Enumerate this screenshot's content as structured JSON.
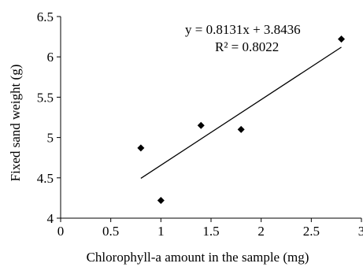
{
  "chart_data": {
    "type": "scatter",
    "title": "",
    "xlabel": "Chlorophyll-a amount in the sample (mg)",
    "ylabel": "Fixed sand weight (g)",
    "xlim": [
      0,
      3
    ],
    "ylim": [
      4,
      6.5
    ],
    "x_ticks": [
      "0",
      "0.5",
      "1",
      "1.5",
      "2",
      "2.5",
      "3"
    ],
    "y_ticks": [
      "4",
      "4.5",
      "5",
      "5.5",
      "6",
      "6.5"
    ],
    "grid": false,
    "series": [
      {
        "marker": "diamond",
        "color": "#000000",
        "points": [
          {
            "x": 0.8,
            "y": 4.87
          },
          {
            "x": 1.0,
            "y": 4.22
          },
          {
            "x": 1.4,
            "y": 5.15
          },
          {
            "x": 1.8,
            "y": 5.1
          },
          {
            "x": 2.8,
            "y": 6.22
          }
        ]
      }
    ],
    "trendline": {
      "slope": 0.8131,
      "intercept": 3.8436,
      "x_range": [
        0.8,
        2.8
      ],
      "equation_label": "y = 0.8131x + 3.8436",
      "r2_label": "R² = 0.8022"
    }
  }
}
